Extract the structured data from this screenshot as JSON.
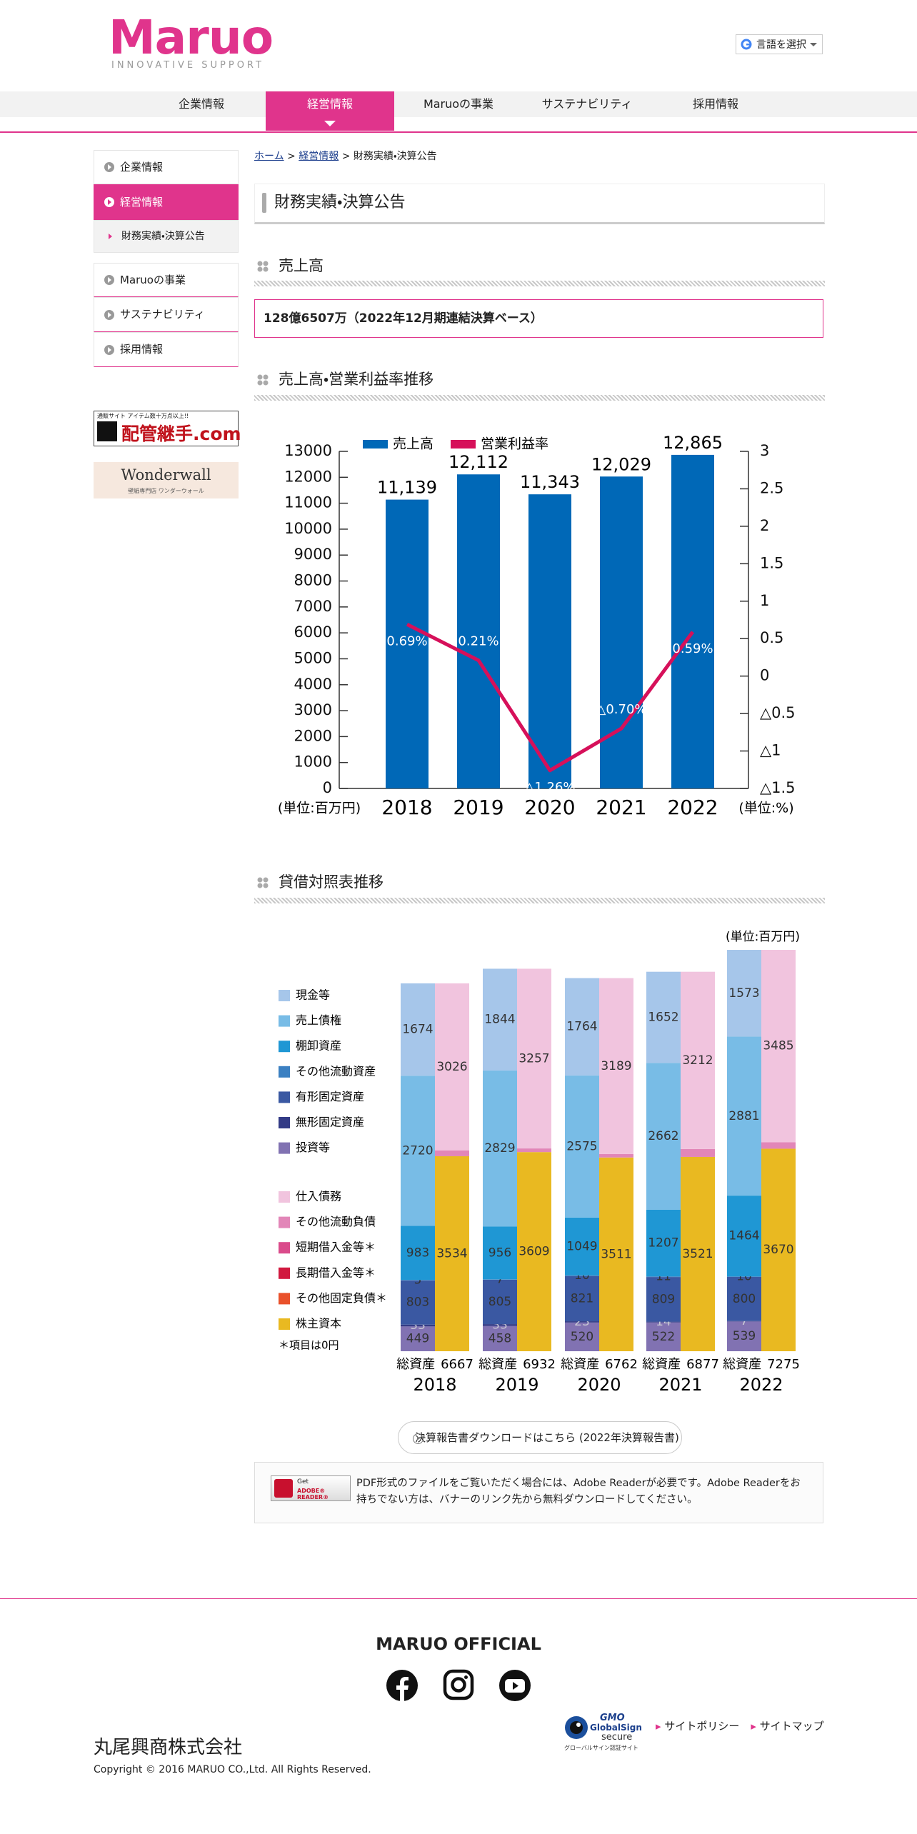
{
  "header": {
    "logo": "Maruo",
    "tagline": "INNOVATIVE SUPPORT",
    "language": "言語を選択"
  },
  "nav": [
    "企業情報",
    "経営情報",
    "Maruoの事業",
    "サステナビリティ",
    "採用情報"
  ],
  "sidebar": [
    "企業情報",
    "経営情報",
    "財務実績・決算公告",
    "Maruoの事業",
    "サステナビリティ",
    "採用情報"
  ],
  "banners": {
    "haikan_caption": "通販サイト アイテム数十万点以上!!",
    "haikan": "配管継手.com",
    "wonderwall": "Wonderwall",
    "wonderwall_caption": "壁紙専門店 ワンダーウォール"
  },
  "breadcrumb": {
    "items": [
      "ホーム",
      "経営情報",
      "財務実績・決算公告"
    ],
    "separator": ">"
  },
  "page_title": "財務実績・決算公告",
  "sections": [
    "売上高",
    "売上高・営業利益率推移",
    "貸借対照表推移"
  ],
  "sales_summary": "128億6507万（2022年12月期連結決算ベース）",
  "chart_data": [
    {
      "type": "bar",
      "categories": [
        "2018",
        "2019",
        "2020",
        "2021",
        "2022"
      ],
      "series": [
        {
          "name": "売上高",
          "color": "#0068b7",
          "values": [
            11139,
            12112,
            11343,
            12029,
            12865
          ],
          "value_labels": [
            "11,139",
            "12,112",
            "11,343",
            "12,029",
            "12,865"
          ]
        },
        {
          "name": "営業利益率",
          "type": "line",
          "axis": "y2",
          "color": "#d6105a",
          "values": [
            0.69,
            0.21,
            -1.26,
            -0.7,
            0.59
          ],
          "value_labels": [
            "0.69%",
            "0.21%",
            "△1.26%",
            "△0.70%",
            "0.59%"
          ]
        }
      ],
      "ylim": [
        0,
        13000
      ],
      "yticks": [
        0,
        1000,
        2000,
        3000,
        4000,
        5000,
        6000,
        7000,
        8000,
        9000,
        10000,
        11000,
        12000,
        13000
      ],
      "y2lim": [
        -1.5,
        3
      ],
      "y2ticks": [
        {
          "value": -1.5,
          "label": "△1.5"
        },
        {
          "value": -1,
          "label": "△1"
        },
        {
          "value": -0.5,
          "label": "△0.5"
        },
        0,
        0.5,
        1,
        1.5,
        2,
        2.5,
        3
      ],
      "ylabel": "(単位:百万円)",
      "y2label": "(単位:%)",
      "legend": "top"
    },
    {
      "type": "stacked_bar",
      "categories": [
        "2018",
        "2019",
        "2020",
        "2021",
        "2022"
      ],
      "unit": "(単位:百万円)",
      "assets": [
        {
          "name": "現金等",
          "color": "#a6c6ea",
          "values": [
            1674,
            1844,
            1764,
            1652,
            1573
          ]
        },
        {
          "name": "売上債権",
          "color": "#78bce6",
          "values": [
            2720,
            2829,
            2575,
            2662,
            2881
          ]
        },
        {
          "name": "棚卸資産",
          "color": "#1f97d4",
          "values": [
            983,
            956,
            1049,
            1207,
            1464
          ]
        },
        {
          "name": "その他流動資産",
          "color": "#3b80c2",
          "values": [
            5,
            7,
            10,
            11,
            10
          ]
        },
        {
          "name": "有形固定資産",
          "color": "#3a58a2",
          "values": [
            803,
            805,
            821,
            809,
            800
          ]
        },
        {
          "name": "無形固定資産",
          "color": "#333b86",
          "values": [
            33,
            33,
            23,
            14,
            7
          ]
        },
        {
          "name": "投資等",
          "color": "#8172b2",
          "values": [
            449,
            458,
            520,
            522,
            539
          ]
        }
      ],
      "liabilities": [
        {
          "name": "仕入債務",
          "color": "#f1c4de",
          "values": [
            3026,
            3257,
            3189,
            3212,
            3485
          ]
        },
        {
          "name": "その他流動負債",
          "color": "#e286b8",
          "values": [
            107,
            66,
            62,
            144,
            119
          ]
        },
        {
          "name": "短期借入金等＊",
          "color": "#da4b8b",
          "values": [
            0,
            0,
            0,
            0,
            0
          ]
        },
        {
          "name": "長期借入金等＊",
          "color": "#d1193f",
          "values": [
            0,
            0,
            0,
            0,
            0
          ]
        },
        {
          "name": "その他固定負債＊",
          "color": "#e9512b",
          "values": [
            0,
            0,
            0,
            0,
            0
          ]
        },
        {
          "name": "株主資本",
          "color": "#e9b921",
          "values": [
            3534,
            3609,
            3511,
            3521,
            3670
          ]
        }
      ],
      "total_label": "総資産",
      "totals": [
        6667,
        6932,
        6762,
        6877,
        7275
      ],
      "note": "＊項目は0円",
      "ylim": [
        0,
        7300
      ]
    }
  ],
  "download": "決算報告書ダウンロードはこちら (2022年決算報告書)",
  "adobe": {
    "badge_top": "Get",
    "badge": "ADOBE® READER®",
    "text": "PDF形式のファイルをご覧いただく場合には、Adobe Readerが必要です。Adobe Readerをお持ちでない方は、バナーのリンク先から無料ダウンロードしてください。"
  },
  "footer": {
    "official": "MARUO OFFICIAL",
    "links": [
      "サイトポリシー",
      "サイトマップ"
    ],
    "gmo": "GMO",
    "globalsign": "GlobalSign",
    "secure": "secure",
    "seal": "グローバルサイン認証サイト",
    "company": "丸尾興商株式会社",
    "copyright": "Copyright © 2016 MARUO CO.,Ltd. All Rights Reserved."
  }
}
